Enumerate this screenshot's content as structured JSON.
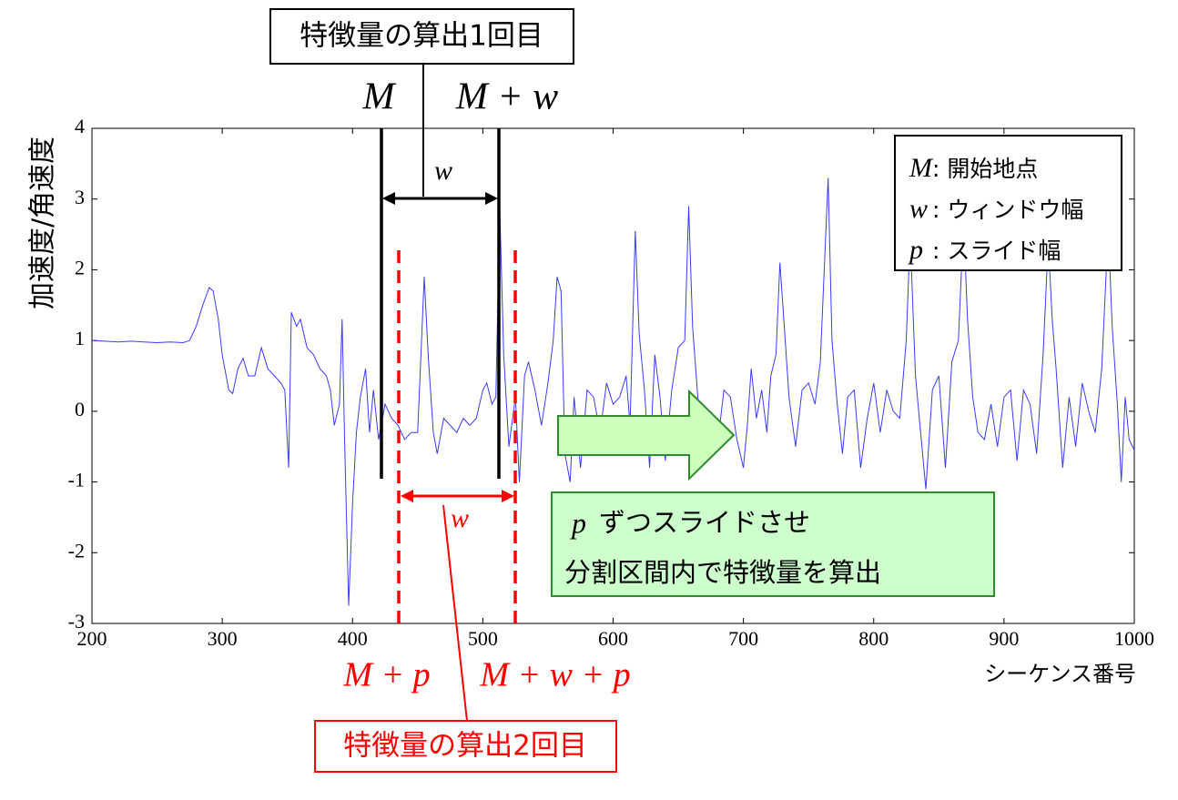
{
  "chart_data": {
    "type": "line",
    "y_label": "加速度/角速度",
    "x_label": "シーケンス番号",
    "xlim": [
      200,
      1000
    ],
    "ylim": [
      -3,
      4
    ],
    "xticks": [
      200,
      300,
      400,
      500,
      600,
      700,
      800,
      900,
      1000
    ],
    "yticks": [
      -3,
      -2,
      -1,
      0,
      1,
      2,
      3,
      4
    ],
    "series": [
      {
        "color": "#3a3aff",
        "x": [
          200,
          210,
          220,
          230,
          240,
          250,
          260,
          270,
          275,
          280,
          285,
          290,
          293,
          297,
          300,
          305,
          308,
          312,
          316,
          320,
          325,
          330,
          335,
          340,
          345,
          348,
          351,
          353,
          357,
          360,
          365,
          370,
          375,
          380,
          383,
          386,
          390,
          392,
          394,
          397,
          400,
          403,
          406,
          410,
          413,
          416,
          420,
          425,
          430,
          435,
          440,
          445,
          450,
          455,
          458,
          462,
          465,
          470,
          475,
          480,
          485,
          490,
          495,
          500,
          503,
          507,
          510,
          513,
          516,
          520,
          525,
          528,
          532,
          535,
          540,
          545,
          550,
          554,
          557,
          560,
          563,
          567,
          570,
          575,
          580,
          585,
          590,
          595,
          600,
          605,
          610,
          613,
          617,
          620,
          624,
          628,
          632,
          636,
          640,
          645,
          650,
          655,
          658,
          661,
          665,
          670,
          675,
          680,
          685,
          690,
          695,
          700,
          703,
          706,
          710,
          714,
          718,
          721,
          725,
          728,
          731,
          735,
          740,
          745,
          750,
          755,
          759,
          762,
          765,
          768,
          772,
          776,
          780,
          785,
          790,
          795,
          800,
          805,
          810,
          815,
          820,
          825,
          828,
          832,
          836,
          840,
          845,
          850,
          855,
          860,
          865,
          869,
          872,
          876,
          880,
          885,
          890,
          895,
          900,
          905,
          910,
          915,
          920,
          925,
          930,
          934,
          937,
          940,
          945,
          950,
          955,
          960,
          965,
          970,
          975,
          980,
          983,
          987,
          990,
          993,
          996,
          1000
        ],
        "values": [
          1.0,
          0.99,
          0.98,
          0.99,
          0.98,
          0.97,
          0.98,
          0.97,
          1.0,
          1.2,
          1.5,
          1.75,
          1.7,
          1.3,
          0.8,
          0.3,
          0.25,
          0.6,
          0.75,
          0.5,
          0.5,
          0.9,
          0.6,
          0.5,
          0.4,
          0.3,
          -0.8,
          1.4,
          1.2,
          1.3,
          0.9,
          0.8,
          0.6,
          0.5,
          0.3,
          -0.2,
          0.1,
          1.3,
          -0.5,
          -2.75,
          -1.3,
          -0.3,
          0.2,
          0.6,
          -0.3,
          0.3,
          -0.4,
          0.1,
          -0.1,
          -0.2,
          -0.4,
          -0.3,
          -0.3,
          1.9,
          0.8,
          -0.3,
          -0.6,
          -0.1,
          -0.2,
          -0.3,
          -0.1,
          -0.2,
          -0.1,
          0.3,
          0.4,
          0.1,
          0.2,
          2.85,
          0.8,
          -0.5,
          0.2,
          -1.0,
          0.5,
          0.7,
          0.3,
          -0.2,
          0.4,
          1.0,
          1.9,
          1.7,
          -0.6,
          -1.0,
          0.2,
          -0.8,
          0.3,
          0.2,
          -0.3,
          0.4,
          0.1,
          0.2,
          0.5,
          -0.2,
          2.55,
          1.1,
          0.3,
          -0.8,
          0.8,
          0.2,
          -0.7,
          0.3,
          0.9,
          1.0,
          2.9,
          1.2,
          0.2,
          -0.6,
          0.0,
          -0.5,
          0.3,
          0.2,
          -0.4,
          -0.8,
          -0.2,
          0.6,
          -0.1,
          0.3,
          -0.3,
          0.5,
          0.8,
          2.1,
          1.3,
          0.2,
          -0.5,
          0.3,
          0.4,
          0.1,
          0.7,
          2.0,
          3.3,
          1.0,
          0.1,
          -0.6,
          0.2,
          0.3,
          -0.8,
          -0.1,
          0.4,
          -0.3,
          0.3,
          0.0,
          -0.1,
          1.0,
          2.5,
          0.5,
          -0.3,
          -1.1,
          0.3,
          0.5,
          -0.8,
          0.7,
          1.0,
          2.7,
          1.3,
          0.2,
          -0.3,
          -0.4,
          0.1,
          -0.5,
          0.2,
          0.3,
          -0.7,
          0.3,
          0.1,
          -0.6,
          0.8,
          2.4,
          1.3,
          0.6,
          -0.8,
          0.2,
          -0.5,
          0.4,
          0.0,
          -0.3,
          0.6,
          2.6,
          1.2,
          0.1,
          -1.0,
          0.2,
          -0.4,
          -0.55
        ]
      }
    ],
    "annotations": {
      "first_box": "特徴量の算出1回目",
      "m": "M",
      "m_plus_w": "M + w",
      "w_black": "w",
      "w_red": "w",
      "m_plus_p": "M + p",
      "m_plus_w_plus_p": "M + w + p",
      "second_box": "特徴量の算出2回目",
      "slide_line1_symbol": "p",
      "slide_line1": "ずつスライドさせ",
      "slide_line2": "分割区間内で特徴量を算出",
      "legend": [
        {
          "symbol": "M",
          "text": ": 開始地点"
        },
        {
          "symbol": "w",
          "text": ": ウィンドウ幅"
        },
        {
          "symbol": "p",
          "text": ": スライド幅"
        }
      ]
    }
  }
}
